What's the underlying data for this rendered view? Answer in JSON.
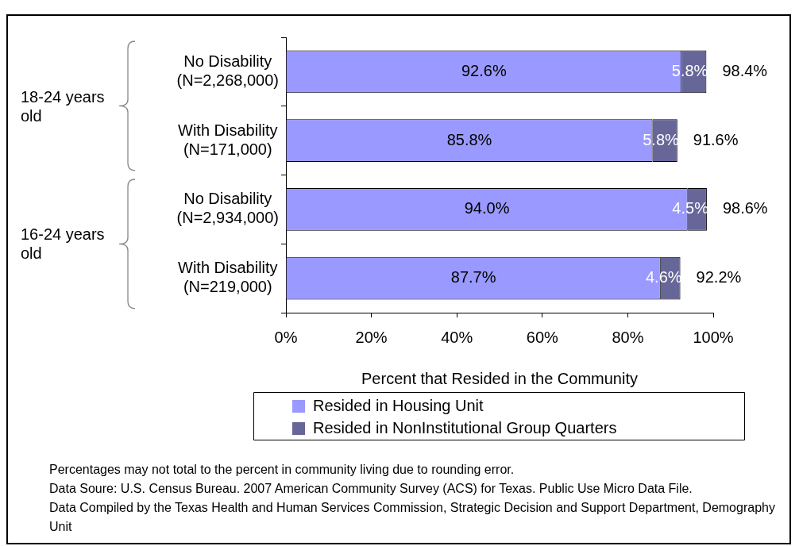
{
  "chart_data": {
    "type": "bar",
    "orientation": "horizontal",
    "stacked": true,
    "categories": [
      "No Disability (N=2,268,000)",
      "With Disability (N=171,000)",
      "No Disability (N=2,934,000)",
      "With Disability (N=219,000)"
    ],
    "series": [
      {
        "name": "Resided in Housing Unit",
        "color": "#9999ff",
        "values": [
          92.6,
          85.8,
          94.0,
          87.7
        ],
        "value_labels": [
          "92.6%",
          "85.8%",
          "94.0%",
          "87.7%"
        ]
      },
      {
        "name": "Resided in NonInstitutional Group Quarters",
        "color": "#666699",
        "values": [
          5.8,
          5.8,
          4.5,
          4.6
        ],
        "value_labels": [
          "5.8%",
          "5.8%",
          "4.5%",
          "4.6%"
        ]
      }
    ],
    "totals": [
      "98.4%",
      "91.6%",
      "98.6%",
      "92.2%"
    ],
    "xlabel": "Percent that Resided in the Community",
    "xlim": [
      0,
      100
    ],
    "xticks": [
      {
        "value": 0,
        "label": "0%"
      },
      {
        "value": 20,
        "label": "20%"
      },
      {
        "value": 40,
        "label": "40%"
      },
      {
        "value": 60,
        "label": "60%"
      },
      {
        "value": 80,
        "label": "80%"
      },
      {
        "value": 100,
        "label": "100%"
      }
    ],
    "grid": false,
    "legend": "bottom",
    "annotations": [
      "18-24 years old",
      "16-24 years old",
      "Percentages may not total to the percent in community living due to rounding error.",
      "Data Soure: U.S. Census Bureau. 2007 American Community Survey (ACS) for Texas. Public Use Micro Data File.",
      "Data Compiled by the Texas Health and Human Services Commission, Strategic Decision and Support Department, Demography Unit"
    ]
  }
}
